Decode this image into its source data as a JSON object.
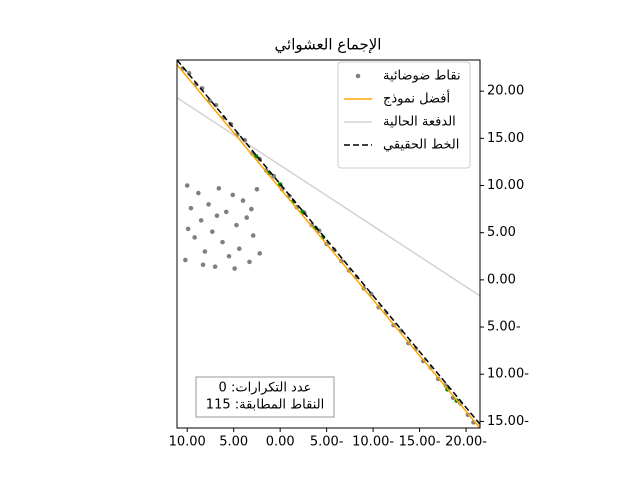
{
  "chart_data": {
    "type": "scatter",
    "title": "الإجماع العشوائي",
    "xlim": [
      11.1,
      -21.5
    ],
    "ylim": [
      -15.7,
      23.3
    ],
    "xticks": [
      {
        "value": 10,
        "label": "10.00"
      },
      {
        "value": 5,
        "label": "5.00"
      },
      {
        "value": 0,
        "label": "0.00"
      },
      {
        "value": -5,
        "label": "5.00-"
      },
      {
        "value": -10,
        "label": "10.00-"
      },
      {
        "value": -15,
        "label": "15.00-"
      },
      {
        "value": -20,
        "label": "20.00-"
      }
    ],
    "yticks": [
      {
        "value": 20,
        "label": "20.00"
      },
      {
        "value": 15,
        "label": "15.00"
      },
      {
        "value": 10,
        "label": "10.00"
      },
      {
        "value": 5,
        "label": "5.00"
      },
      {
        "value": 0,
        "label": "0.00"
      },
      {
        "value": -5,
        "label": "5.00-"
      },
      {
        "value": -10,
        "label": "10.00-"
      },
      {
        "value": -15,
        "label": "15.00-"
      }
    ],
    "legend_position": "upper right",
    "series": [
      {
        "name": "نقاط ضوضائية",
        "kind": "points",
        "color": "#808080",
        "x": [
          10.5,
          9.8,
          9.1,
          8.4,
          7.6,
          6.9,
          6.1,
          5.3,
          4.6,
          3.8,
          3.0,
          2.2,
          1.5,
          0.7,
          -0.2,
          -1.0,
          -1.8,
          -2.6,
          -3.4,
          -4.2,
          -5.0,
          -5.8,
          -6.6,
          -7.4,
          -8.2,
          -9.0,
          -9.8,
          -10.6,
          -11.4,
          -12.2,
          -13.0,
          -13.8,
          -14.6,
          -15.4,
          -16.2,
          -17.0,
          -17.8,
          -18.6,
          -19.4,
          -20.2,
          -20.8,
          10,
          9.6,
          9.2,
          10.2,
          8.8,
          8.5,
          8.1,
          7.7,
          7.3,
          7.0,
          6.6,
          6.2,
          5.8,
          5.5,
          5.1,
          4.7,
          4.4,
          4.0,
          3.6,
          3.3,
          2.9,
          2.5,
          2.2,
          9.9,
          6.8,
          4.9,
          3.1,
          8.3
        ],
        "values": [
          22.4,
          21.9,
          20.7,
          20.3,
          19.0,
          18.5,
          17.2,
          16.5,
          15.4,
          14.8,
          13.4,
          12.8,
          11.6,
          11.0,
          9.6,
          8.9,
          7.7,
          7.1,
          5.8,
          5.2,
          3.8,
          3.2,
          2.0,
          1.0,
          0.3,
          -0.9,
          -1.5,
          -2.9,
          -3.5,
          -4.8,
          -5.4,
          -6.7,
          -7.3,
          -8.6,
          -9.3,
          -10.5,
          -11.2,
          -12.5,
          -13.1,
          -14.3,
          -15.1,
          10,
          7.6,
          4.5,
          2.1,
          9.2,
          6.3,
          3.0,
          8.0,
          5.1,
          1.4,
          9.7,
          4.0,
          7.2,
          2.5,
          9.0,
          5.8,
          3.3,
          8.4,
          6.6,
          1.9,
          4.7,
          9.6,
          2.8,
          5.4,
          6.8,
          1.2,
          7.5,
          1.6
        ]
      },
      {
        "kind": "points",
        "color": "#008000",
        "x": [
          2.6,
          1.2,
          0.0,
          -1.4,
          -2.4,
          -3.8,
          -4.6,
          -18.0,
          -19.0
        ],
        "values": [
          13.1,
          11.3,
          10.1,
          8.3,
          7.2,
          5.5,
          4.5,
          -11.6,
          -12.8
        ]
      },
      {
        "name": "أفضل نموذج",
        "kind": "line",
        "color": "#ffa500",
        "dash": false,
        "x": [
          11.1,
          -21.5
        ],
        "values": [
          22.8,
          -15.7
        ]
      },
      {
        "name": "الدفعة الحالية",
        "kind": "line",
        "color": "#d3d3d3",
        "dash": false,
        "x": [
          11.1,
          -21.5
        ],
        "values": [
          19.3,
          -1.7
        ]
      },
      {
        "name": "الخط الحقيقي",
        "kind": "line",
        "color": "#000000",
        "dash": true,
        "x": [
          11.1,
          -21.5
        ],
        "values": [
          23.3,
          -15.3
        ]
      }
    ],
    "annotation": [
      "عدد التكرارات: 0",
      "النقاط المطابقة: 115"
    ]
  }
}
